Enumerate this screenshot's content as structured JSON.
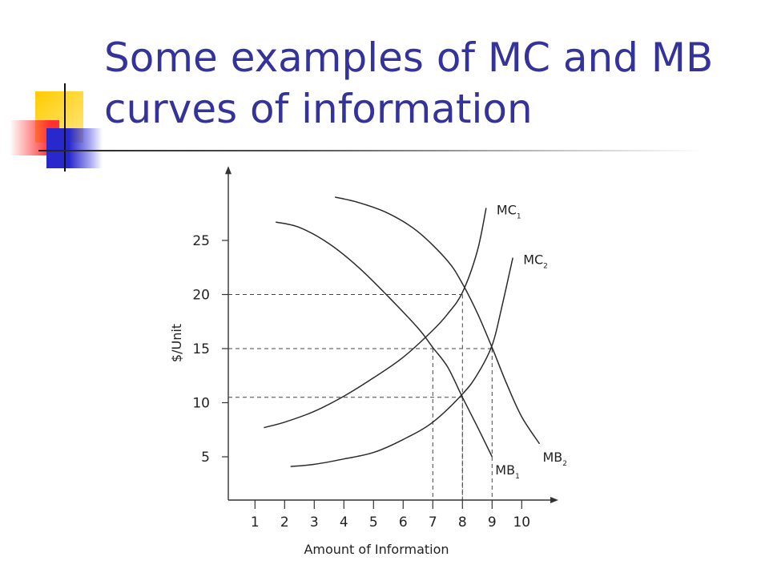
{
  "slide": {
    "title_line1": "Some examples of MC and MB",
    "title_line2": "curves of information",
    "title_color": "#333399"
  },
  "chart_data": {
    "type": "line",
    "title": "",
    "xlabel": "Amount of Information",
    "ylabel": "$/Unit",
    "xlim": [
      0.1,
      11.1
    ],
    "ylim": [
      1,
      31.5
    ],
    "x_ticks": [
      1,
      2,
      3,
      4,
      5,
      6,
      7,
      8,
      9,
      10
    ],
    "y_ticks": [
      5,
      10,
      15,
      20,
      25
    ],
    "grid": false,
    "series": [
      {
        "name": "MC",
        "subscript": "1",
        "x": [
          1.3,
          2,
          3,
          4,
          5,
          6,
          7,
          7.5,
          8,
          8.5,
          8.8
        ],
        "y": [
          7.7,
          8.2,
          9.2,
          10.6,
          12.3,
          14.2,
          16.7,
          18.2,
          20.2,
          24,
          28
        ]
      },
      {
        "name": "MC",
        "subscript": "2",
        "x": [
          2.2,
          3,
          4,
          5,
          6,
          7,
          8,
          8.5,
          9,
          9.3,
          9.7
        ],
        "y": [
          4.1,
          4.3,
          4.8,
          5.4,
          6.6,
          8.2,
          10.8,
          12.6,
          15.3,
          18.5,
          23.4
        ]
      },
      {
        "name": "MB",
        "subscript": "1",
        "x": [
          1.7,
          2.5,
          3.5,
          4.5,
          5.5,
          6.5,
          7,
          7.5,
          8,
          8.5,
          9
        ],
        "y": [
          26.7,
          26.2,
          24.7,
          22.5,
          19.8,
          16.9,
          15.1,
          13.3,
          10.5,
          7.8,
          5
        ]
      },
      {
        "name": "MB",
        "subscript": "2",
        "x": [
          3.7,
          4.5,
          5.5,
          6.5,
          7.5,
          8,
          8.5,
          9,
          9.5,
          10,
          10.6
        ],
        "y": [
          29,
          28.5,
          27.5,
          25.8,
          23.1,
          21,
          18.3,
          15.1,
          11.7,
          8.7,
          6.2
        ]
      }
    ],
    "reference_points": [
      {
        "x": 7,
        "y": 15
      },
      {
        "x": 8,
        "y": 20
      },
      {
        "x": 8,
        "y": 10.5
      },
      {
        "x": 9,
        "y": 15
      }
    ]
  }
}
